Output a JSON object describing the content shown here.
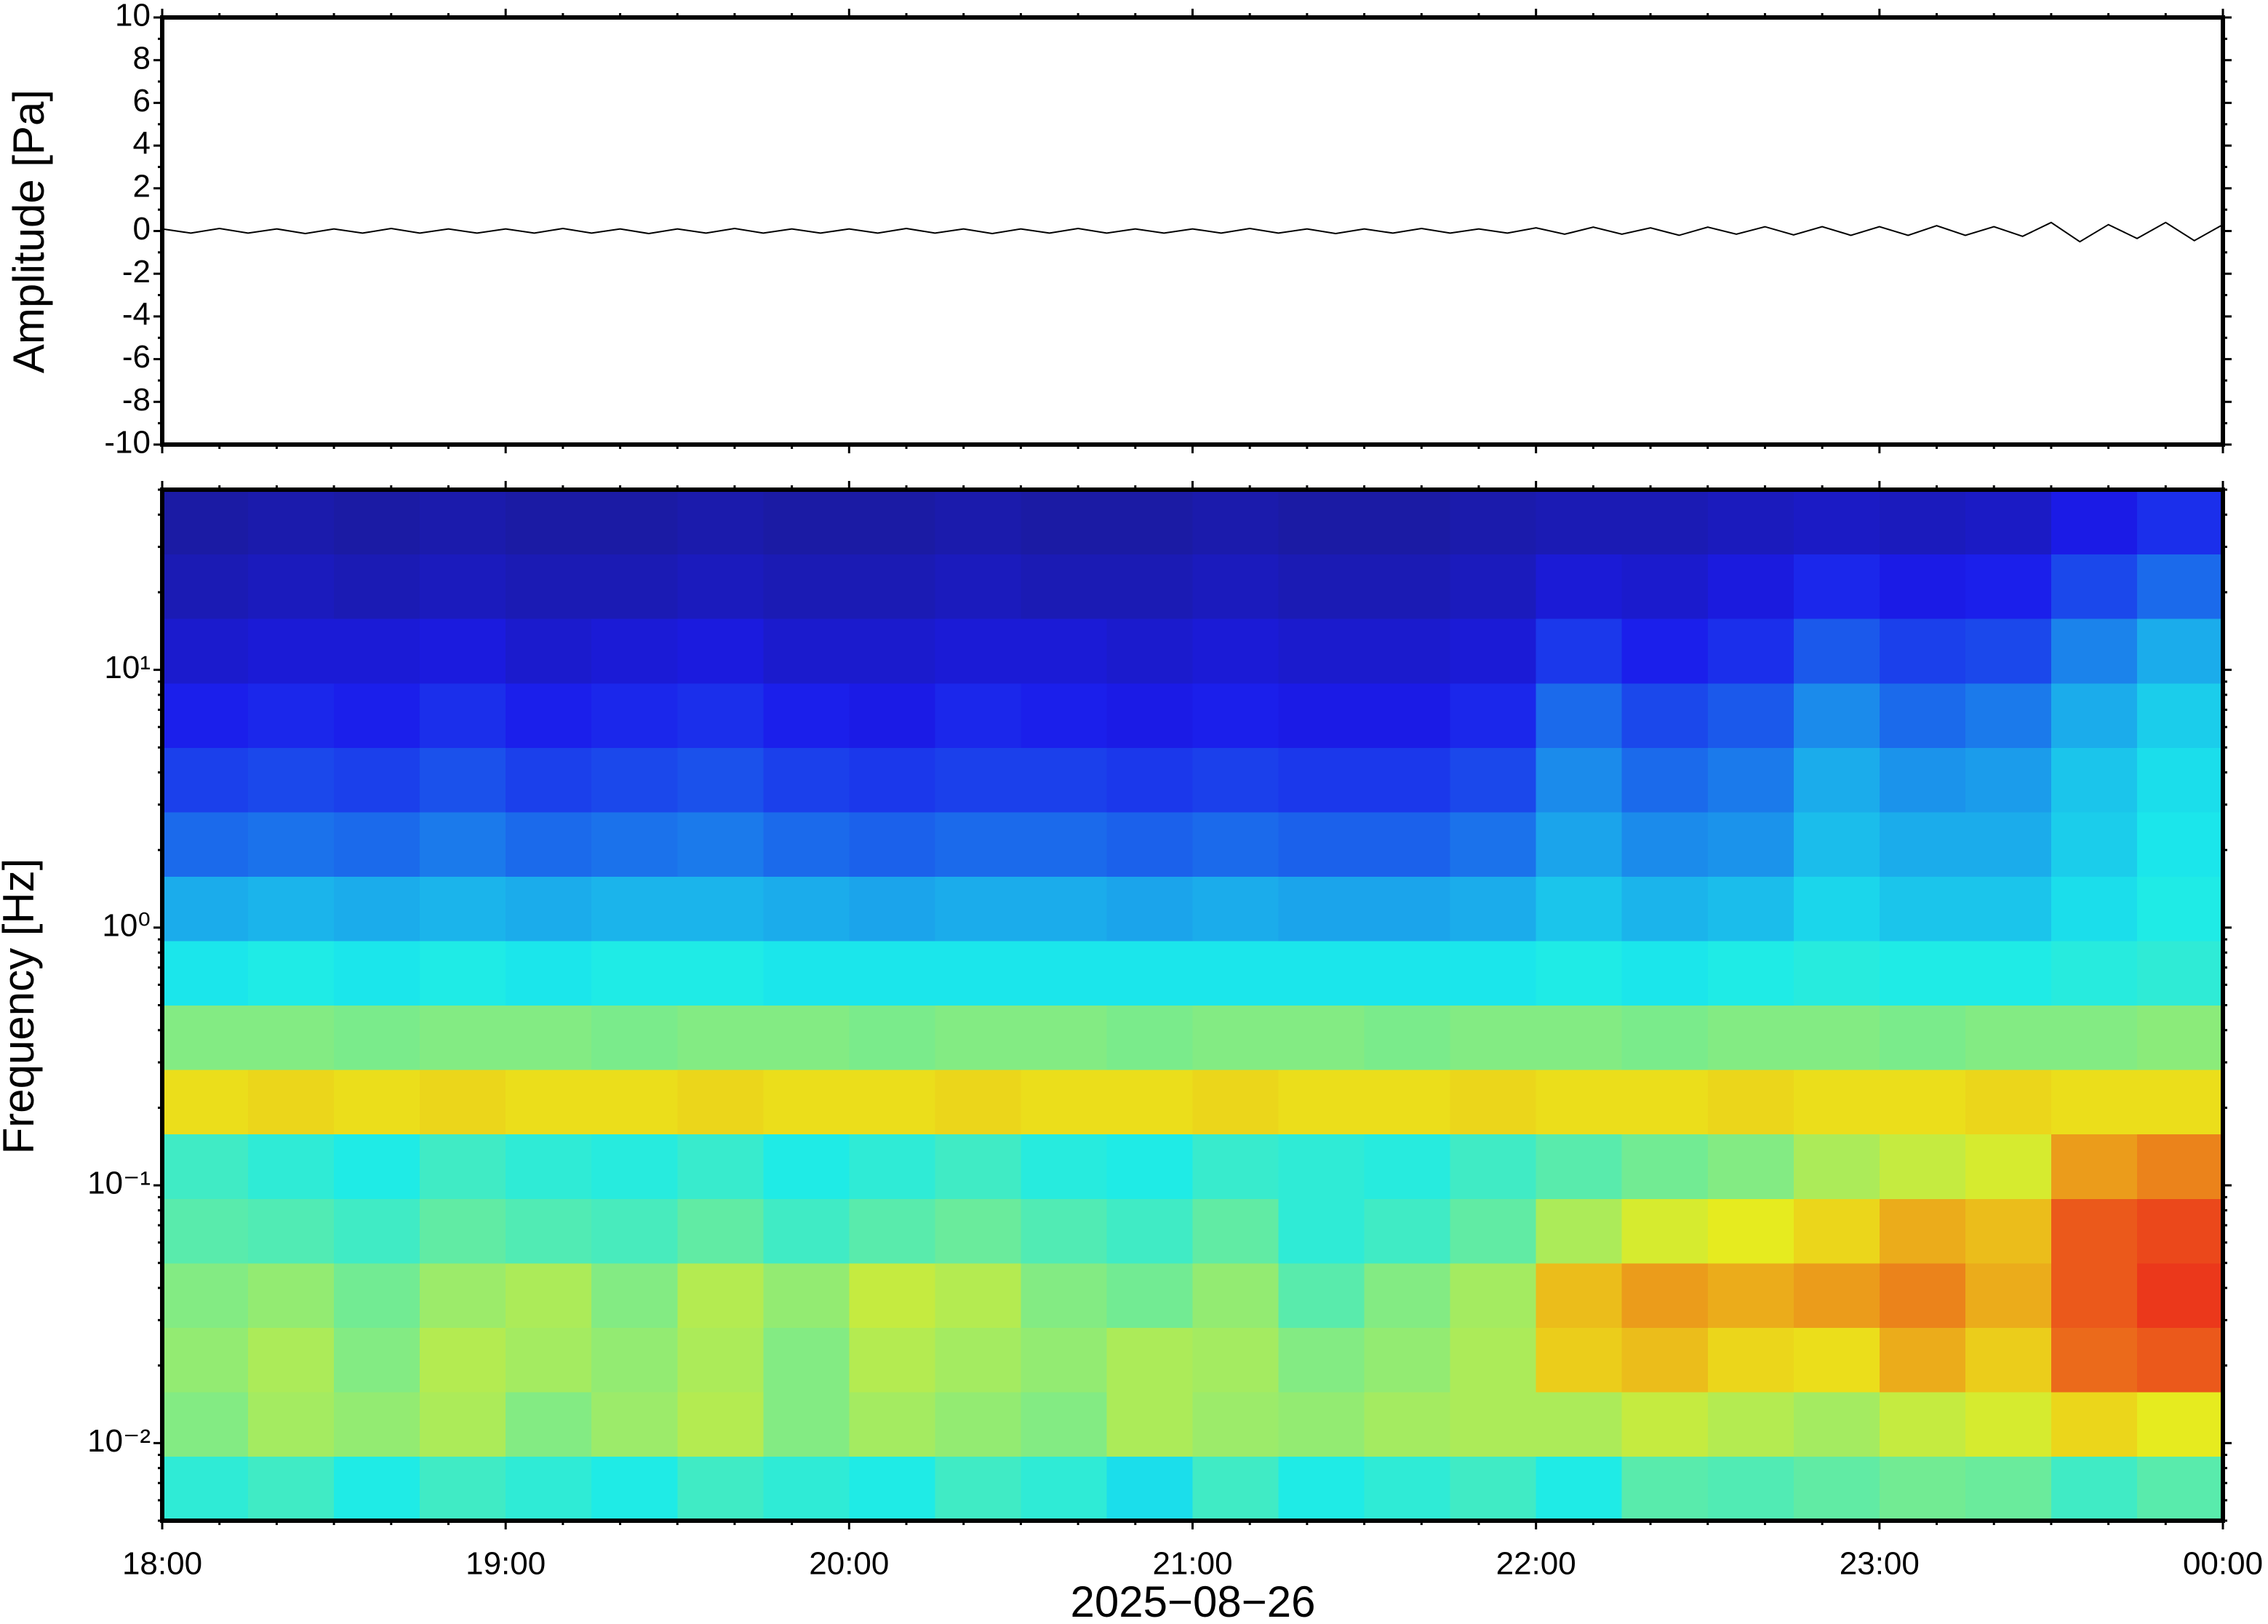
{
  "chart_data": [
    {
      "type": "line",
      "ylabel": "Amplitude [Pa]",
      "color": "#000000",
      "ylim": [
        -10,
        10
      ],
      "yticks": [
        -10,
        -8,
        -6,
        -4,
        -2,
        0,
        2,
        4,
        6,
        8,
        10
      ],
      "values": [
        0.1,
        -0.1,
        0.12,
        -0.1,
        0.1,
        -0.12,
        0.1,
        -0.1,
        0.12,
        -0.1,
        0.1,
        -0.1,
        0.1,
        -0.1,
        0.12,
        -0.1,
        0.1,
        -0.12,
        0.1,
        -0.1,
        0.12,
        -0.1,
        0.1,
        -0.1,
        0.1,
        -0.1,
        0.12,
        -0.1,
        0.1,
        -0.12,
        0.1,
        -0.1,
        0.12,
        -0.1,
        0.1,
        -0.1,
        0.1,
        -0.1,
        0.12,
        -0.1,
        0.1,
        -0.12,
        0.1,
        -0.1,
        0.12,
        -0.1,
        0.1,
        -0.1,
        0.15,
        -0.15,
        0.18,
        -0.15,
        0.15,
        -0.2,
        0.18,
        -0.15,
        0.2,
        -0.18,
        0.2,
        -0.2,
        0.2,
        -0.2,
        0.25,
        -0.2,
        0.2,
        -0.25,
        0.4,
        -0.5,
        0.3,
        -0.35,
        0.4,
        -0.45,
        0.3
      ]
    },
    {
      "type": "heatmap",
      "ylabel": "Frequency [Hz]",
      "xlabel": "2025−08−26",
      "colormap": "jet",
      "log_y": true,
      "xticks": [
        "18:00",
        "19:00",
        "20:00",
        "21:00",
        "22:00",
        "23:00",
        "00:00"
      ],
      "ylim": [
        0.005,
        50
      ],
      "yticks": [
        {
          "value": 0.01,
          "label": "10⁻²"
        },
        {
          "value": 0.1,
          "label": "10⁻¹"
        },
        {
          "value": 1,
          "label": "10⁰"
        },
        {
          "value": 10,
          "label": "10¹"
        }
      ],
      "z": [
        [
          0.4,
          0.42,
          0.38,
          0.42,
          0.4,
          0.38,
          0.42,
          0.4,
          0.38,
          0.42,
          0.4,
          0.36,
          0.42,
          0.38,
          0.4,
          0.42,
          0.38,
          0.45,
          0.44,
          0.46,
          0.48,
          0.47,
          0.42,
          0.45
        ],
        [
          0.5,
          0.54,
          0.52,
          0.55,
          0.5,
          0.53,
          0.56,
          0.5,
          0.54,
          0.52,
          0.5,
          0.55,
          0.53,
          0.52,
          0.54,
          0.55,
          0.55,
          0.58,
          0.56,
          0.54,
          0.58,
          0.6,
          0.65,
          0.62
        ],
        [
          0.52,
          0.55,
          0.5,
          0.56,
          0.54,
          0.52,
          0.55,
          0.5,
          0.56,
          0.54,
          0.52,
          0.55,
          0.54,
          0.5,
          0.52,
          0.55,
          0.66,
          0.68,
          0.65,
          0.64,
          0.7,
          0.66,
          0.78,
          0.8
        ],
        [
          0.5,
          0.52,
          0.48,
          0.53,
          0.55,
          0.5,
          0.56,
          0.52,
          0.58,
          0.56,
          0.5,
          0.48,
          0.52,
          0.45,
          0.5,
          0.54,
          0.68,
          0.72,
          0.7,
          0.72,
          0.75,
          0.7,
          0.8,
          0.84
        ],
        [
          0.45,
          0.44,
          0.42,
          0.46,
          0.44,
          0.43,
          0.46,
          0.42,
          0.45,
          0.47,
          0.44,
          0.42,
          0.46,
          0.4,
          0.42,
          0.46,
          0.55,
          0.6,
          0.62,
          0.65,
          0.7,
          0.68,
          0.8,
          0.82
        ],
        [
          0.42,
          0.4,
          0.38,
          0.42,
          0.4,
          0.39,
          0.41,
          0.38,
          0.4,
          0.42,
          0.39,
          0.38,
          0.41,
          0.4,
          0.39,
          0.42,
          0.45,
          0.48,
          0.5,
          0.55,
          0.58,
          0.6,
          0.72,
          0.75
        ],
        [
          0.64,
          0.65,
          0.64,
          0.65,
          0.64,
          0.64,
          0.65,
          0.64,
          0.64,
          0.65,
          0.64,
          0.64,
          0.65,
          0.64,
          0.64,
          0.65,
          0.64,
          0.64,
          0.65,
          0.64,
          0.64,
          0.65,
          0.64,
          0.64
        ],
        [
          0.5,
          0.5,
          0.49,
          0.5,
          0.5,
          0.49,
          0.5,
          0.5,
          0.49,
          0.5,
          0.5,
          0.49,
          0.5,
          0.5,
          0.49,
          0.5,
          0.5,
          0.49,
          0.5,
          0.5,
          0.49,
          0.5,
          0.5,
          0.51
        ],
        [
          0.37,
          0.38,
          0.37,
          0.38,
          0.37,
          0.38,
          0.38,
          0.37,
          0.37,
          0.37,
          0.37,
          0.37,
          0.37,
          0.37,
          0.37,
          0.37,
          0.38,
          0.37,
          0.38,
          0.39,
          0.38,
          0.38,
          0.39,
          0.4
        ],
        [
          0.3,
          0.31,
          0.3,
          0.31,
          0.3,
          0.31,
          0.31,
          0.3,
          0.29,
          0.3,
          0.3,
          0.29,
          0.3,
          0.29,
          0.29,
          0.3,
          0.33,
          0.31,
          0.32,
          0.35,
          0.33,
          0.33,
          0.36,
          0.38
        ],
        [
          0.22,
          0.23,
          0.22,
          0.24,
          0.22,
          0.23,
          0.24,
          0.22,
          0.21,
          0.22,
          0.22,
          0.21,
          0.22,
          0.21,
          0.21,
          0.23,
          0.29,
          0.26,
          0.27,
          0.32,
          0.3,
          0.3,
          0.34,
          0.37
        ],
        [
          0.17,
          0.18,
          0.17,
          0.19,
          0.17,
          0.18,
          0.19,
          0.17,
          0.16,
          0.17,
          0.17,
          0.16,
          0.17,
          0.16,
          0.16,
          0.18,
          0.26,
          0.22,
          0.24,
          0.3,
          0.27,
          0.28,
          0.33,
          0.36
        ],
        [
          0.13,
          0.14,
          0.13,
          0.15,
          0.13,
          0.14,
          0.15,
          0.13,
          0.12,
          0.14,
          0.13,
          0.12,
          0.13,
          0.12,
          0.12,
          0.14,
          0.22,
          0.18,
          0.2,
          0.26,
          0.22,
          0.24,
          0.3,
          0.34
        ],
        [
          0.09,
          0.1,
          0.1,
          0.11,
          0.09,
          0.1,
          0.11,
          0.09,
          0.09,
          0.1,
          0.1,
          0.09,
          0.1,
          0.09,
          0.09,
          0.1,
          0.16,
          0.13,
          0.15,
          0.2,
          0.17,
          0.18,
          0.25,
          0.3
        ],
        [
          0.06,
          0.07,
          0.06,
          0.07,
          0.06,
          0.06,
          0.07,
          0.06,
          0.06,
          0.07,
          0.06,
          0.06,
          0.07,
          0.06,
          0.06,
          0.07,
          0.1,
          0.09,
          0.11,
          0.14,
          0.12,
          0.13,
          0.18,
          0.22
        ],
        [
          0.04,
          0.05,
          0.04,
          0.05,
          0.04,
          0.04,
          0.05,
          0.04,
          0.04,
          0.05,
          0.04,
          0.04,
          0.05,
          0.04,
          0.04,
          0.05,
          0.06,
          0.06,
          0.07,
          0.08,
          0.07,
          0.08,
          0.12,
          0.15
        ]
      ]
    }
  ]
}
